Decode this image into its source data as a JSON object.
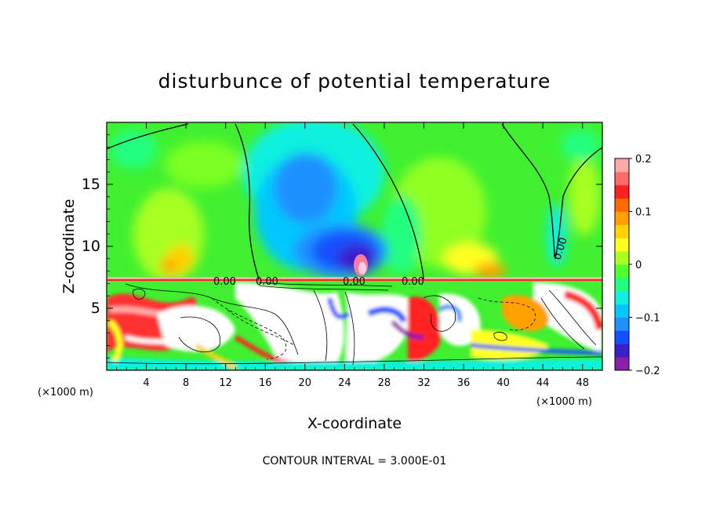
{
  "chart_data": {
    "type": "heatmap",
    "title": "disturbunce of potential temperature",
    "xlabel": "X-coordinate",
    "ylabel": "Z-coordinate",
    "x_unit": "(×1000 m)",
    "x_unit_right": "(×1000 m)",
    "xlim": [
      0,
      50
    ],
    "ylim": [
      0,
      20
    ],
    "x_ticks": [
      4,
      8,
      12,
      16,
      20,
      24,
      28,
      32,
      36,
      40,
      44,
      48
    ],
    "y_ticks": [
      5,
      10,
      15
    ],
    "colorbar": {
      "min": -0.2,
      "max": 0.2,
      "tick_values": [
        0.2,
        0.1,
        0,
        -0.1,
        -0.2
      ],
      "tick_labels": [
        "0.2",
        "0.1",
        "0",
        "−0.1",
        "−0.2"
      ],
      "colors": [
        "#8b1fa8",
        "#3b1fc8",
        "#1450ff",
        "#1e90ff",
        "#00c8ff",
        "#10f0e0",
        "#20ff80",
        "#50ff30",
        "#a8ff20",
        "#ffff20",
        "#ffd200",
        "#ffa000",
        "#ff6a00",
        "#ff2020",
        "#ff6a6a",
        "#ffa8a8"
      ]
    },
    "contour_labels": [
      "0.00",
      "0.00",
      "0.00",
      "0.00",
      "0.00"
    ],
    "contour_interval_text": "CONTOUR INTERVAL = 3.000E-01"
  }
}
